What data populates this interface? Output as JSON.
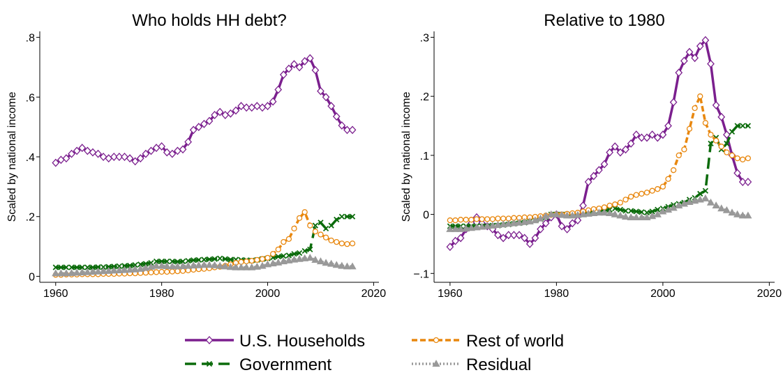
{
  "chart_data": [
    {
      "type": "line",
      "title": "Who holds HH debt?",
      "y_label": "Scaled by national income",
      "x": [
        1960,
        1961,
        1962,
        1963,
        1964,
        1965,
        1966,
        1967,
        1968,
        1969,
        1970,
        1971,
        1972,
        1973,
        1974,
        1975,
        1976,
        1977,
        1978,
        1979,
        1980,
        1981,
        1982,
        1983,
        1984,
        1985,
        1986,
        1987,
        1988,
        1989,
        1990,
        1991,
        1992,
        1993,
        1994,
        1995,
        1996,
        1997,
        1998,
        1999,
        2000,
        2001,
        2002,
        2003,
        2004,
        2005,
        2006,
        2007,
        2008,
        2009,
        2010,
        2011,
        2012,
        2013,
        2014,
        2015,
        2016
      ],
      "xlim": [
        1957,
        2021
      ],
      "xticks": [
        1960,
        1980,
        2000,
        2020
      ],
      "ylim": [
        -0.02,
        0.82
      ],
      "yticks": [
        0,
        {
          "value": 0.2,
          "label": ".2"
        },
        {
          "value": 0.4,
          "label": ".4"
        },
        {
          "value": 0.6,
          "label": ".6"
        },
        {
          "value": 0.8,
          "label": ".8"
        }
      ],
      "series": [
        {
          "name": "U.S. Households",
          "color": "#7b1f8e",
          "values": [
            0.38,
            0.39,
            0.395,
            0.41,
            0.42,
            0.43,
            0.42,
            0.415,
            0.41,
            0.4,
            0.395,
            0.4,
            0.4,
            0.4,
            0.395,
            0.385,
            0.395,
            0.41,
            0.42,
            0.43,
            0.435,
            0.415,
            0.41,
            0.42,
            0.425,
            0.45,
            0.49,
            0.5,
            0.51,
            0.52,
            0.54,
            0.55,
            0.54,
            0.545,
            0.555,
            0.57,
            0.565,
            0.565,
            0.57,
            0.565,
            0.57,
            0.585,
            0.625,
            0.675,
            0.695,
            0.71,
            0.7,
            0.72,
            0.73,
            0.69,
            0.62,
            0.6,
            0.57,
            0.535,
            0.505,
            0.49,
            0.49
          ]
        },
        {
          "name": "Government",
          "color": "#0b6b0b",
          "values": [
            0.03,
            0.03,
            0.03,
            0.03,
            0.03,
            0.03,
            0.03,
            0.03,
            0.031,
            0.031,
            0.032,
            0.033,
            0.034,
            0.035,
            0.036,
            0.038,
            0.04,
            0.042,
            0.045,
            0.05,
            0.05,
            0.05,
            0.05,
            0.049,
            0.05,
            0.052,
            0.054,
            0.055,
            0.056,
            0.057,
            0.058,
            0.06,
            0.058,
            0.056,
            0.056,
            0.055,
            0.054,
            0.053,
            0.055,
            0.058,
            0.06,
            0.063,
            0.066,
            0.068,
            0.07,
            0.075,
            0.078,
            0.085,
            0.09,
            0.17,
            0.18,
            0.16,
            0.17,
            0.19,
            0.2,
            0.2,
            0.2
          ]
        },
        {
          "name": "Rest of world",
          "color": "#e8870e",
          "values": [
            0.005,
            0.005,
            0.006,
            0.006,
            0.006,
            0.007,
            0.007,
            0.007,
            0.007,
            0.008,
            0.008,
            0.008,
            0.009,
            0.009,
            0.01,
            0.01,
            0.011,
            0.012,
            0.013,
            0.014,
            0.015,
            0.015,
            0.016,
            0.017,
            0.018,
            0.02,
            0.022,
            0.024,
            0.025,
            0.027,
            0.03,
            0.032,
            0.035,
            0.04,
            0.045,
            0.048,
            0.05,
            0.052,
            0.055,
            0.058,
            0.062,
            0.075,
            0.09,
            0.115,
            0.125,
            0.16,
            0.195,
            0.215,
            0.17,
            0.15,
            0.14,
            0.13,
            0.12,
            0.115,
            0.11,
            0.108,
            0.11
          ]
        },
        {
          "name": "Residual",
          "color": "#999999",
          "values": [
            0.01,
            0.01,
            0.01,
            0.011,
            0.012,
            0.013,
            0.014,
            0.015,
            0.016,
            0.017,
            0.018,
            0.019,
            0.02,
            0.021,
            0.022,
            0.023,
            0.025,
            0.028,
            0.032,
            0.035,
            0.035,
            0.034,
            0.033,
            0.033,
            0.034,
            0.035,
            0.036,
            0.037,
            0.038,
            0.038,
            0.037,
            0.035,
            0.033,
            0.031,
            0.03,
            0.03,
            0.03,
            0.03,
            0.032,
            0.035,
            0.04,
            0.043,
            0.046,
            0.05,
            0.053,
            0.056,
            0.058,
            0.06,
            0.062,
            0.055,
            0.05,
            0.045,
            0.042,
            0.038,
            0.035,
            0.033,
            0.033
          ]
        }
      ]
    },
    {
      "type": "line",
      "title": "Relative to 1980",
      "y_label": "Scaled by national income",
      "x": [
        1960,
        1961,
        1962,
        1963,
        1964,
        1965,
        1966,
        1967,
        1968,
        1969,
        1970,
        1971,
        1972,
        1973,
        1974,
        1975,
        1976,
        1977,
        1978,
        1979,
        1980,
        1981,
        1982,
        1983,
        1984,
        1985,
        1986,
        1987,
        1988,
        1989,
        1990,
        1991,
        1992,
        1993,
        1994,
        1995,
        1996,
        1997,
        1998,
        1999,
        2000,
        2001,
        2002,
        2003,
        2004,
        2005,
        2006,
        2007,
        2008,
        2009,
        2010,
        2011,
        2012,
        2013,
        2014,
        2015,
        2016
      ],
      "xlim": [
        1957,
        2021
      ],
      "xticks": [
        1960,
        1980,
        2000,
        2020
      ],
      "ylim": [
        -0.115,
        0.31
      ],
      "yticks": [
        {
          "value": -0.1,
          "label": "−.1"
        },
        0,
        {
          "value": 0.1,
          "label": ".1"
        },
        {
          "value": 0.2,
          "label": ".2"
        },
        {
          "value": 0.3,
          "label": ".3"
        }
      ],
      "series": [
        {
          "color": "#7b1f8e",
          "values": [
            -0.055,
            -0.045,
            -0.04,
            -0.025,
            -0.015,
            -0.005,
            -0.015,
            -0.02,
            -0.025,
            -0.035,
            -0.04,
            -0.035,
            -0.035,
            -0.035,
            -0.04,
            -0.05,
            -0.04,
            -0.025,
            -0.015,
            -0.005,
            0,
            -0.02,
            -0.025,
            -0.015,
            -0.01,
            0.015,
            0.055,
            0.065,
            0.075,
            0.085,
            0.105,
            0.115,
            0.105,
            0.11,
            0.12,
            0.135,
            0.13,
            0.13,
            0.135,
            0.13,
            0.135,
            0.15,
            0.19,
            0.24,
            0.26,
            0.275,
            0.265,
            0.285,
            0.295,
            0.255,
            0.185,
            0.165,
            0.135,
            0.1,
            0.07,
            0.055,
            0.055
          ]
        },
        {
          "color": "#0b6b0b",
          "values": [
            -0.02,
            -0.02,
            -0.02,
            -0.02,
            -0.02,
            -0.02,
            -0.02,
            -0.02,
            -0.019,
            -0.019,
            -0.018,
            -0.017,
            -0.016,
            -0.015,
            -0.014,
            -0.012,
            -0.01,
            -0.008,
            -0.005,
            0,
            0,
            0,
            0,
            -0.001,
            0,
            0.002,
            0.004,
            0.005,
            0.006,
            0.007,
            0.008,
            0.01,
            0.008,
            0.006,
            0.006,
            0.005,
            0.004,
            0.003,
            0.005,
            0.008,
            0.01,
            0.013,
            0.016,
            0.018,
            0.02,
            0.025,
            0.028,
            0.035,
            0.04,
            0.12,
            0.13,
            0.11,
            0.12,
            0.14,
            0.15,
            0.15,
            0.15
          ]
        },
        {
          "color": "#e8870e",
          "values": [
            -0.01,
            -0.01,
            -0.009,
            -0.009,
            -0.009,
            -0.008,
            -0.008,
            -0.008,
            -0.008,
            -0.007,
            -0.007,
            -0.007,
            -0.006,
            -0.006,
            -0.005,
            -0.005,
            -0.004,
            -0.003,
            -0.002,
            -0.001,
            0,
            0,
            0.001,
            0.002,
            0.003,
            0.005,
            0.007,
            0.009,
            0.01,
            0.012,
            0.015,
            0.017,
            0.02,
            0.025,
            0.03,
            0.033,
            0.035,
            0.037,
            0.04,
            0.043,
            0.047,
            0.06,
            0.075,
            0.1,
            0.11,
            0.145,
            0.18,
            0.2,
            0.155,
            0.135,
            0.125,
            0.115,
            0.105,
            0.1,
            0.095,
            0.093,
            0.095
          ]
        },
        {
          "color": "#999999",
          "values": [
            -0.025,
            -0.025,
            -0.025,
            -0.024,
            -0.023,
            -0.022,
            -0.021,
            -0.02,
            -0.019,
            -0.018,
            -0.017,
            -0.016,
            -0.015,
            -0.014,
            -0.013,
            -0.012,
            -0.01,
            -0.007,
            -0.003,
            0,
            0,
            -0.001,
            -0.002,
            -0.002,
            -0.001,
            0,
            0.001,
            0.002,
            0.003,
            0.003,
            0.002,
            0,
            -0.002,
            -0.004,
            -0.005,
            -0.005,
            -0.005,
            -0.005,
            -0.003,
            0,
            0.005,
            0.008,
            0.011,
            0.015,
            0.018,
            0.021,
            0.023,
            0.025,
            0.027,
            0.02,
            0.015,
            0.01,
            0.007,
            0.003,
            0,
            -0.002,
            -0.002
          ]
        }
      ]
    }
  ]
}
